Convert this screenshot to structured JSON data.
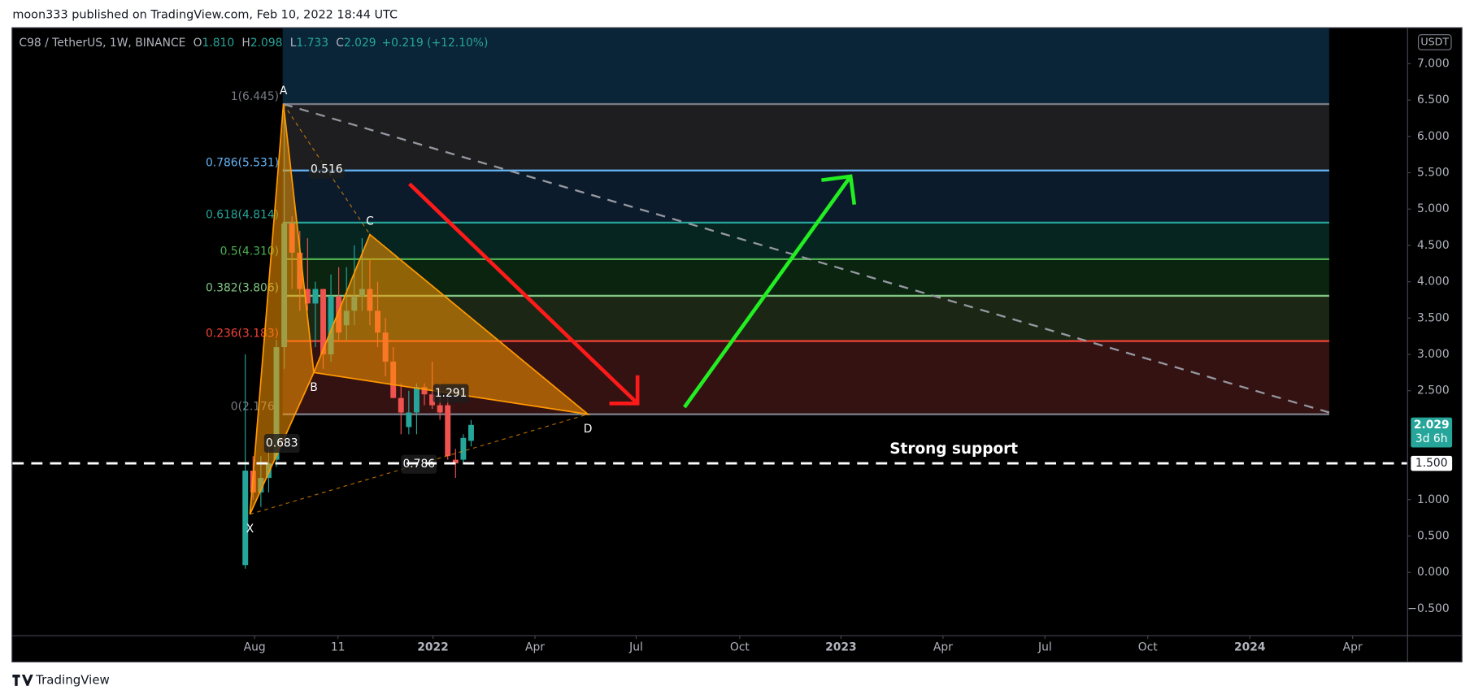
{
  "header": "moon333 published on TradingView.com, Feb 10, 2022 18:44 UTC",
  "footer": "TradingView",
  "chart_data": {
    "type": "candlestick",
    "legend": {
      "symbol": "C98 / TetherUS, 1W, BINANCE",
      "items": [
        {
          "key": "O",
          "text": "1.810"
        },
        {
          "key": "H",
          "text": "2.098"
        },
        {
          "key": "L",
          "text": "1.733"
        },
        {
          "key": "C",
          "text": "2.029"
        }
      ],
      "change": "+0.219 (+12.10%)"
    },
    "x": [
      0,
      1,
      2,
      3,
      4,
      5,
      6,
      7,
      8,
      9,
      10,
      11,
      12,
      13,
      14,
      15,
      16,
      17,
      18,
      19,
      20,
      21,
      22,
      23,
      24,
      25,
      26,
      27,
      28,
      29
    ],
    "open": [
      0.1,
      1.4,
      1.1,
      1.3,
      1.55,
      3.1,
      4.8,
      4.4,
      3.9,
      3.7,
      3.9,
      3.0,
      3.8,
      3.4,
      3.6,
      3.8,
      3.9,
      3.6,
      3.3,
      2.9,
      2.4,
      2.0,
      2.2,
      2.55,
      2.45,
      2.3,
      2.3,
      1.55,
      1.55,
      1.81
    ],
    "high": [
      3.0,
      1.6,
      1.6,
      1.8,
      3.2,
      6.4,
      4.9,
      4.7,
      4.6,
      4.0,
      3.9,
      4.1,
      4.2,
      4.2,
      4.5,
      4.6,
      4.3,
      4.0,
      3.5,
      3.1,
      2.6,
      2.5,
      2.6,
      2.6,
      2.9,
      2.6,
      2.4,
      1.7,
      1.9,
      2.098
    ],
    "low": [
      0.05,
      1.0,
      0.9,
      1.1,
      1.45,
      2.8,
      3.9,
      3.6,
      3.6,
      3.1,
      2.8,
      2.9,
      3.2,
      3.2,
      3.4,
      3.6,
      3.4,
      3.1,
      2.7,
      2.4,
      1.9,
      1.9,
      1.9,
      2.3,
      2.25,
      2.1,
      1.55,
      1.3,
      1.5,
      1.733
    ],
    "close": [
      1.4,
      1.1,
      1.3,
      1.5,
      3.1,
      4.8,
      4.4,
      3.9,
      3.7,
      3.9,
      3.0,
      3.8,
      3.3,
      3.6,
      3.8,
      3.9,
      3.6,
      3.3,
      2.9,
      2.4,
      2.2,
      2.2,
      2.55,
      2.45,
      2.3,
      2.2,
      1.6,
      1.5,
      1.85,
      2.029
    ],
    "up_color": "#26a69a",
    "down_color": "#ef5350",
    "xlim": [
      -29.9,
      149.2
    ],
    "xticks": [
      {
        "value": 1.2,
        "label": "Aug"
      },
      {
        "value": 11.9,
        "label": "11"
      },
      {
        "value": 24.1,
        "label": "2022"
      },
      {
        "value": 37.2,
        "label": "Apr"
      },
      {
        "value": 50.2,
        "label": "Jul"
      },
      {
        "value": 63.5,
        "label": "Oct"
      },
      {
        "value": 76.5,
        "label": "2023"
      },
      {
        "value": 89.6,
        "label": "Apr"
      },
      {
        "value": 102.7,
        "label": "Jul"
      },
      {
        "value": 115.9,
        "label": "Oct"
      },
      {
        "value": 129.0,
        "label": "2024"
      },
      {
        "value": 142.2,
        "label": "Apr"
      }
    ],
    "ylim": [
      -0.865,
      7.49
    ],
    "yticks": [
      {
        "value": 7,
        "label": "7.000"
      },
      {
        "value": 6.5,
        "label": "6.500"
      },
      {
        "value": 6,
        "label": "6.000"
      },
      {
        "value": 5.5,
        "label": "5.500"
      },
      {
        "value": 5,
        "label": "5.000"
      },
      {
        "value": 4.5,
        "label": "4.500"
      },
      {
        "value": 4,
        "label": "4.000"
      },
      {
        "value": 3.5,
        "label": "3.500"
      },
      {
        "value": 3,
        "label": "3.000"
      },
      {
        "value": 2.5,
        "label": "2.500"
      },
      {
        "value": 1,
        "label": "1.000"
      },
      {
        "value": 0.5,
        "label": "0.500"
      },
      {
        "value": 0,
        "label": "0.000"
      },
      {
        "value": -0.5,
        "label": "−0.500"
      }
    ],
    "y_unit": "USDT",
    "last_price": {
      "value": 2.029,
      "label": "2.029",
      "countdown": "3d 6h"
    },
    "fib_span": [
      4.8,
      139.2
    ],
    "fib_levels": [
      {
        "label": "1(6.445)",
        "value": 6.445,
        "color": "#787b86",
        "fill": "#1e1e20"
      },
      {
        "label": "0.786(5.531)",
        "value": 5.531,
        "color": "#64b5f6",
        "fill": "#0c1b2c"
      },
      {
        "label": "0.618(4.814)",
        "value": 4.814,
        "color": "#26a69a",
        "fill": "#062521"
      },
      {
        "label": "0.5(4.310)",
        "value": 4.31,
        "color": "#4caf50",
        "fill": "#0b2410"
      },
      {
        "label": "0.382(3.806)",
        "value": 3.806,
        "color": "#81c784",
        "fill": "#1c2614"
      },
      {
        "label": "0.236(3.183)",
        "value": 3.183,
        "color": "#f44336",
        "fill": "#351212"
      },
      {
        "label": "0(2.176)",
        "value": 2.176,
        "color": "#787b86",
        "fill": "#000000"
      }
    ],
    "fib_top_fill": "#0a2438",
    "pattern": {
      "color": "#ff9800",
      "points": [
        {
          "label": "X",
          "x": 0.6,
          "y": 0.8
        },
        {
          "label": "A",
          "x": 4.9,
          "y": 6.445
        },
        {
          "label": "B",
          "x": 8.8,
          "y": 2.75
        },
        {
          "label": "C",
          "x": 16.0,
          "y": 4.65
        },
        {
          "label": "D",
          "x": 44.0,
          "y": 2.176
        }
      ],
      "ratios": [
        "0.683",
        "0.516",
        "1.291",
        "0.786"
      ]
    },
    "trendline": {
      "x": [
        4.9,
        139.2
      ],
      "y": [
        6.445,
        2.2
      ]
    },
    "support": {
      "label": "Strong support",
      "value": 1.5,
      "price_label": "1.500"
    }
  }
}
